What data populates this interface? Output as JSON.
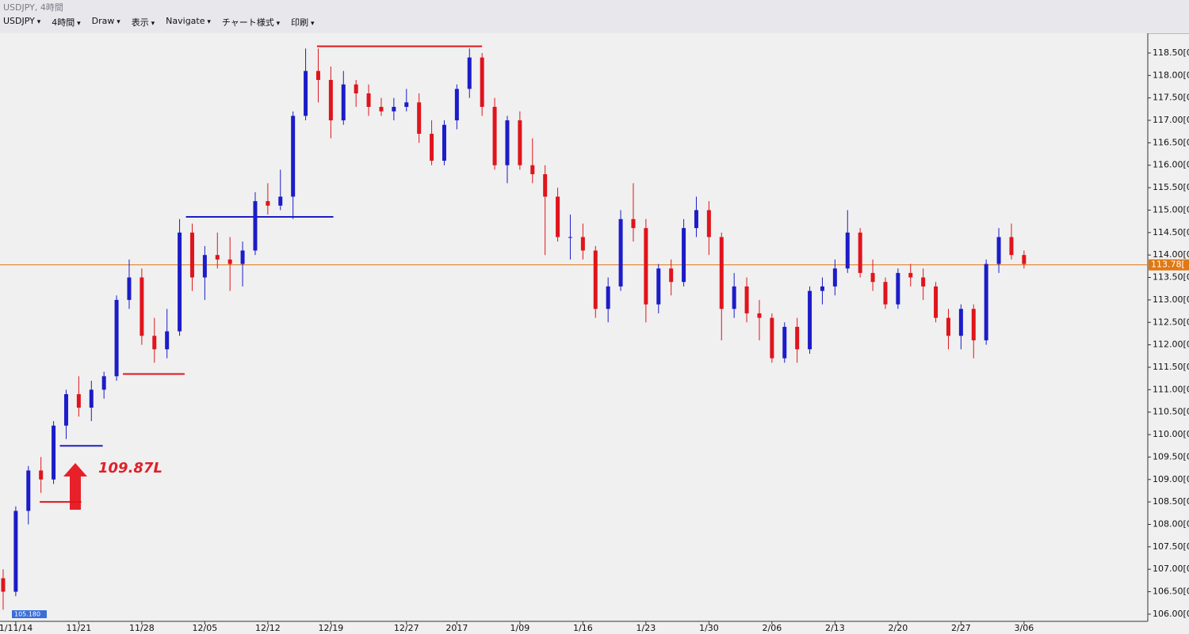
{
  "window": {
    "title": "USDJPY, 4時間",
    "toolbar": [
      "USDJPY",
      "4時間",
      "Draw",
      "表示",
      "Navigate",
      "チャート様式",
      "印刷"
    ]
  },
  "chart_data": {
    "type": "candlestick",
    "open": [
      106.8,
      106.5,
      108.3,
      109.2,
      109.0,
      110.2,
      110.9,
      110.6,
      111.0,
      111.3,
      113.0,
      113.5,
      112.2,
      111.9,
      112.3,
      114.5,
      113.5,
      114.0,
      113.9,
      113.8,
      114.1,
      115.2,
      115.1,
      115.3,
      117.1,
      118.1,
      117.9,
      117.0,
      117.8,
      117.6,
      117.3,
      117.2,
      117.3,
      117.4,
      116.7,
      116.1,
      117.0,
      117.7,
      118.4,
      117.3,
      116.0,
      117.0,
      116.0,
      115.8,
      115.3,
      114.4,
      114.4,
      114.1,
      112.8,
      113.3,
      114.8,
      114.6,
      112.9,
      113.7,
      113.4,
      114.6,
      115.0,
      114.4,
      112.8,
      113.3,
      112.7,
      112.6,
      111.7,
      112.4,
      111.9,
      113.2,
      113.3,
      113.7,
      114.5,
      113.6,
      113.4,
      112.9,
      113.6,
      113.5,
      113.3,
      112.6,
      112.2,
      112.8,
      112.1,
      113.8,
      114.4,
      114.0
    ],
    "high": [
      107.0,
      108.4,
      109.3,
      109.5,
      110.3,
      111.0,
      111.3,
      111.2,
      111.4,
      113.1,
      113.9,
      113.7,
      112.6,
      112.8,
      114.8,
      114.7,
      114.2,
      114.5,
      114.4,
      114.3,
      115.4,
      115.6,
      115.9,
      117.2,
      118.6,
      118.6,
      118.2,
      118.1,
      117.9,
      117.8,
      117.5,
      117.5,
      117.7,
      117.6,
      117.0,
      117.0,
      117.8,
      118.6,
      118.5,
      117.5,
      117.1,
      117.2,
      116.6,
      116.0,
      115.5,
      114.9,
      114.7,
      114.2,
      113.5,
      115.0,
      115.6,
      114.8,
      113.8,
      113.9,
      114.8,
      115.3,
      115.2,
      114.5,
      113.6,
      113.5,
      113.0,
      112.7,
      112.5,
      112.6,
      113.3,
      113.5,
      113.9,
      115.0,
      114.6,
      113.9,
      113.5,
      113.7,
      113.8,
      113.7,
      113.4,
      112.8,
      112.9,
      112.9,
      113.9,
      114.6,
      114.7,
      114.1
    ],
    "low": [
      106.1,
      106.4,
      108.0,
      108.7,
      108.9,
      109.9,
      110.4,
      110.3,
      110.8,
      111.2,
      112.8,
      112.0,
      111.6,
      111.7,
      112.2,
      113.2,
      113.0,
      113.7,
      113.2,
      113.3,
      114.0,
      114.9,
      115.0,
      114.8,
      117.0,
      117.4,
      116.6,
      116.9,
      117.3,
      117.1,
      117.1,
      117.0,
      117.2,
      116.5,
      116.0,
      116.0,
      116.8,
      117.5,
      117.1,
      115.9,
      115.6,
      115.9,
      115.6,
      114.0,
      114.3,
      113.9,
      113.9,
      112.6,
      112.5,
      113.2,
      114.3,
      112.5,
      112.7,
      113.1,
      113.3,
      114.4,
      114.0,
      112.1,
      112.6,
      112.5,
      112.1,
      111.6,
      111.6,
      111.6,
      111.8,
      112.9,
      113.1,
      113.6,
      113.5,
      113.2,
      112.8,
      112.8,
      113.3,
      113.0,
      112.5,
      111.9,
      111.9,
      111.7,
      112.0,
      113.6,
      113.9,
      113.7
    ],
    "close": [
      106.5,
      108.3,
      109.2,
      109.0,
      110.2,
      110.9,
      110.6,
      111.0,
      111.3,
      113.0,
      113.5,
      112.2,
      111.9,
      112.3,
      114.5,
      113.5,
      114.0,
      113.9,
      113.8,
      114.1,
      115.2,
      115.1,
      115.3,
      117.1,
      118.1,
      117.9,
      117.0,
      117.8,
      117.6,
      117.3,
      117.2,
      117.3,
      117.4,
      116.7,
      116.1,
      116.9,
      117.7,
      118.4,
      117.3,
      116.0,
      117.0,
      116.0,
      115.8,
      115.3,
      114.4,
      114.4,
      114.1,
      112.8,
      113.3,
      114.8,
      114.6,
      112.9,
      113.7,
      113.4,
      114.6,
      115.0,
      114.4,
      112.8,
      113.3,
      112.7,
      112.6,
      111.7,
      112.4,
      111.9,
      113.2,
      113.3,
      113.7,
      114.5,
      113.6,
      113.4,
      112.9,
      113.6,
      113.5,
      113.3,
      112.6,
      112.2,
      112.8,
      112.1,
      113.8,
      114.4,
      114.0,
      113.8
    ],
    "up_color": "#1c1cc8",
    "down_color": "#e0141c",
    "xlim": [
      -0.25,
      90.82
    ],
    "xticks": [
      {
        "value": 1,
        "label": "1/11/14"
      },
      {
        "value": 6,
        "label": "11/21"
      },
      {
        "value": 11,
        "label": "11/28"
      },
      {
        "value": 16,
        "label": "12/05"
      },
      {
        "value": 21,
        "label": "12/12"
      },
      {
        "value": 26,
        "label": "12/19"
      },
      {
        "value": 32,
        "label": "12/27"
      },
      {
        "value": 36,
        "label": "2017"
      },
      {
        "value": 41,
        "label": "1/09"
      },
      {
        "value": 46,
        "label": "1/16"
      },
      {
        "value": 51,
        "label": "1/23"
      },
      {
        "value": 56,
        "label": "1/30"
      },
      {
        "value": 61,
        "label": "2/06"
      },
      {
        "value": 66,
        "label": "2/13"
      },
      {
        "value": 71,
        "label": "2/20"
      },
      {
        "value": 76,
        "label": "2/27"
      },
      {
        "value": 81,
        "label": "3/06"
      }
    ],
    "ylim": [
      105.84,
      118.94
    ],
    "yticks": [
      {
        "value": 106,
        "label": "106.00[0"
      },
      {
        "value": 106.5,
        "label": "106.50[0"
      },
      {
        "value": 107,
        "label": "107.00[0"
      },
      {
        "value": 107.5,
        "label": "107.50[0"
      },
      {
        "value": 108,
        "label": "108.00[0"
      },
      {
        "value": 108.5,
        "label": "108.50[0"
      },
      {
        "value": 109,
        "label": "109.00[0"
      },
      {
        "value": 109.5,
        "label": "109.50[0"
      },
      {
        "value": 110,
        "label": "110.00[0"
      },
      {
        "value": 110.5,
        "label": "110.50[0"
      },
      {
        "value": 111,
        "label": "111.00[0"
      },
      {
        "value": 111.5,
        "label": "111.50[0"
      },
      {
        "value": 112,
        "label": "112.00[0"
      },
      {
        "value": 112.5,
        "label": "112.50[0"
      },
      {
        "value": 113,
        "label": "113.00[0"
      },
      {
        "value": 113.5,
        "label": "113.50[0"
      },
      {
        "value": 114,
        "label": "114.00[0"
      },
      {
        "value": 114.5,
        "label": "114.50[0"
      },
      {
        "value": 115,
        "label": "115.00[0"
      },
      {
        "value": 115.5,
        "label": "115.50[0"
      },
      {
        "value": 116,
        "label": "116.00[0"
      },
      {
        "value": 116.5,
        "label": "116.50[0"
      },
      {
        "value": 117,
        "label": "117.00[0"
      },
      {
        "value": 117.5,
        "label": "117.50[0"
      },
      {
        "value": 118,
        "label": "118.00[0"
      },
      {
        "value": 118.5,
        "label": "118.50[0"
      }
    ],
    "levels": [
      {
        "value": 118.65,
        "from": 24.9,
        "to": 38,
        "color": "#e0141c"
      },
      {
        "value": 114.85,
        "from": 14.5,
        "to": 26.2,
        "color": "#1c1cc8"
      },
      {
        "value": 111.35,
        "from": 9.5,
        "to": 14.4,
        "color": "#e0141c"
      },
      {
        "value": 109.75,
        "from": 4.5,
        "to": 7.9,
        "color": "#1c1cc8"
      },
      {
        "value": 108.5,
        "from": 2.9,
        "to": 6.2,
        "color": "#e0141c"
      }
    ],
    "last_price": {
      "value": 113.78,
      "label": "113.78[",
      "color": "#e07814"
    },
    "annotation": "109.87L",
    "low_label": "105.180"
  }
}
